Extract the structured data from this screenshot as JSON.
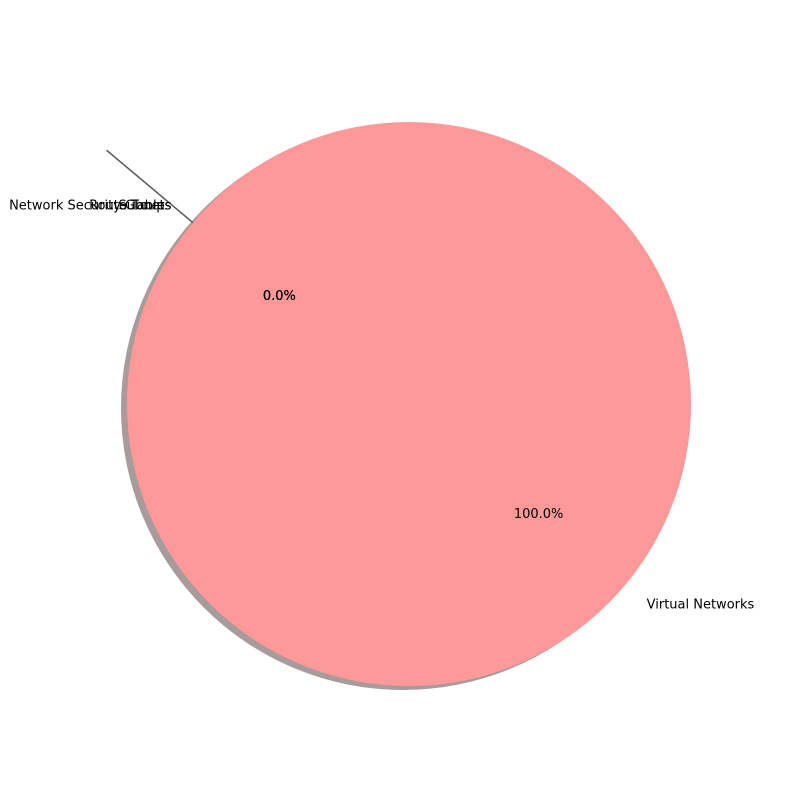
{
  "chart_data": {
    "type": "pie",
    "slices": [
      {
        "label": "Virtual Networks",
        "value": 100.0,
        "pct_label": "100.0%",
        "color": "#ff9999"
      },
      {
        "label": "Network Security Groups",
        "value": 0.0,
        "pct_label": "0.0%",
        "color": "#66b3ff"
      },
      {
        "label": "Route Tables",
        "value": 0.0,
        "pct_label": "0.0%",
        "color": "#99ff99"
      },
      {
        "label": "Subnets",
        "value": 0.0,
        "pct_label": "0.0%",
        "color": "#ffcc99"
      }
    ],
    "shadow": true,
    "start_angle_deg": 140,
    "explode_leader_color": "#595959",
    "shadow_color": "#a89b9b"
  }
}
